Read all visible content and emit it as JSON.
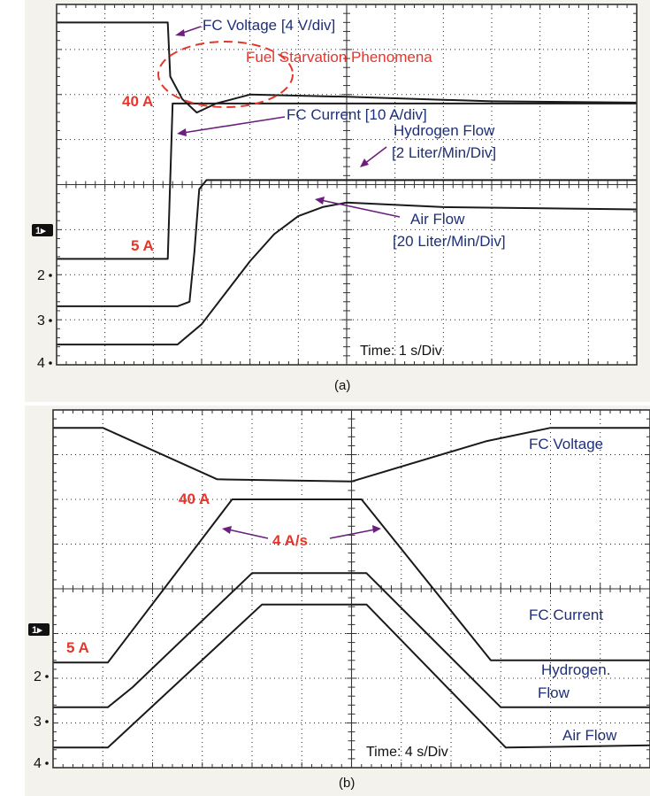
{
  "chart_data": [
    {
      "type": "line",
      "panel": "a",
      "caption": "(a)",
      "time_label": "Time: 1 s/Div",
      "x_divisions": 12,
      "y_divisions": 8,
      "channel_labels": [
        "1",
        "2",
        "3",
        "4"
      ],
      "series": [
        {
          "name": "FC Voltage [4 V/div]",
          "points": [
            [
              0,
              7.6
            ],
            [
              2.3,
              7.6
            ],
            [
              2.35,
              6.4
            ],
            [
              2.6,
              5.9
            ],
            [
              2.9,
              5.6
            ],
            [
              3.3,
              5.8
            ],
            [
              4.0,
              6.0
            ],
            [
              6.0,
              5.95
            ],
            [
              9,
              5.85
            ],
            [
              12,
              5.82
            ]
          ]
        },
        {
          "name": "FC Current [10 A/div]",
          "points": [
            [
              0,
              2.35
            ],
            [
              2.3,
              2.35
            ],
            [
              2.4,
              5.8
            ],
            [
              12,
              5.8
            ]
          ]
        },
        {
          "name": "Hydrogen Flow [2 Liter/Min/Div]",
          "points": [
            [
              0,
              1.3
            ],
            [
              2.5,
              1.3
            ],
            [
              2.75,
              1.4
            ],
            [
              2.85,
              2.5
            ],
            [
              2.95,
              3.9
            ],
            [
              3.1,
              4.1
            ],
            [
              6.0,
              4.1
            ],
            [
              12,
              4.1
            ]
          ]
        },
        {
          "name": "Air Flow [20 Liter/Min/Div]",
          "points": [
            [
              0,
              0.45
            ],
            [
              2.5,
              0.45
            ],
            [
              3.0,
              0.9
            ],
            [
              3.5,
              1.6
            ],
            [
              4.0,
              2.3
            ],
            [
              4.5,
              2.9
            ],
            [
              5.0,
              3.3
            ],
            [
              5.5,
              3.5
            ],
            [
              6.0,
              3.6
            ],
            [
              8,
              3.5
            ],
            [
              12,
              3.45
            ]
          ]
        }
      ],
      "annotations": {
        "fc_voltage": "FC Voltage [4 V/div]",
        "fuel_starvation": "Fuel Starvation Phenomena",
        "current_high": "40 A",
        "fc_current": "FC Current [10 A/div]",
        "hydrogen_flow_1": "Hydrogen Flow",
        "hydrogen_flow_2": "[2 Liter/Min/Div]",
        "air_flow_1": "Air Flow",
        "air_flow_2": "[20 Liter/Min/Div]",
        "current_low": "5 A"
      }
    },
    {
      "type": "line",
      "panel": "b",
      "caption": "(b)",
      "time_label": "Time: 4 s/Div",
      "x_divisions": 12,
      "y_divisions": 8,
      "channel_labels": [
        "1",
        "2",
        "3",
        "4"
      ],
      "series": [
        {
          "name": "FC Voltage",
          "points": [
            [
              0,
              7.6
            ],
            [
              1.0,
              7.6
            ],
            [
              3.3,
              6.45
            ],
            [
              6.0,
              6.4
            ],
            [
              8.7,
              7.3
            ],
            [
              10.0,
              7.6
            ],
            [
              12,
              7.6
            ]
          ]
        },
        {
          "name": "FC Current",
          "points": [
            [
              0,
              2.35
            ],
            [
              1.1,
              2.35
            ],
            [
              3.6,
              6.0
            ],
            [
              6.2,
              6.0
            ],
            [
              8.8,
              2.4
            ],
            [
              12,
              2.4
            ]
          ]
        },
        {
          "name": "Hydrogen Flow",
          "points": [
            [
              0,
              1.35
            ],
            [
              1.1,
              1.35
            ],
            [
              1.6,
              1.8
            ],
            [
              4.0,
              4.35
            ],
            [
              6.3,
              4.35
            ],
            [
              9.0,
              1.35
            ],
            [
              12,
              1.35
            ]
          ]
        },
        {
          "name": "Air Flow",
          "points": [
            [
              0,
              0.45
            ],
            [
              1.1,
              0.45
            ],
            [
              4.2,
              3.65
            ],
            [
              6.3,
              3.65
            ],
            [
              9.1,
              0.45
            ],
            [
              12,
              0.5
            ]
          ]
        }
      ],
      "annotations": {
        "current_high": "40 A",
        "ramp": "4 A/s",
        "current_low": "5 A",
        "fc_voltage": "FC Voltage",
        "fc_current": "FC Current",
        "hydrogen_1": "Hydrogen.",
        "hydrogen_2": "Flow",
        "air_flow": "Air Flow"
      }
    }
  ]
}
